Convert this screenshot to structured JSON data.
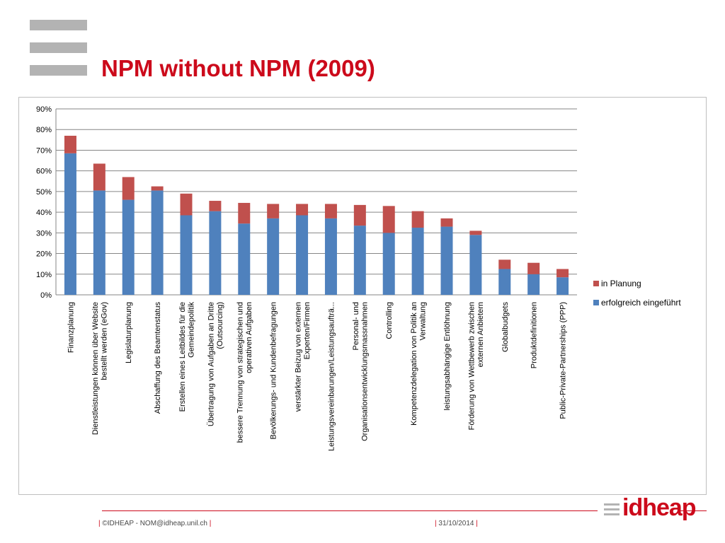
{
  "slide": {
    "title": "NPM without NPM (2009)"
  },
  "footer": {
    "copyright": "©IDHEAP - NOM@idheap.unil.ch",
    "date": "31/10/2014",
    "separator": "|",
    "brand": "idheap"
  },
  "colors": {
    "title": "#cc0a1b",
    "series_blue": "#4f81bd",
    "series_red": "#c0504d",
    "grid": "#7f7f7f",
    "logo_gray": "#b3b3b3"
  },
  "chart_data": {
    "type": "bar",
    "stacked": true,
    "title": "",
    "xlabel": "",
    "ylabel": "",
    "ylim": [
      0,
      90
    ],
    "y_unit": "%",
    "y_ticks": [
      "0%",
      "10%",
      "20%",
      "30%",
      "40%",
      "50%",
      "60%",
      "70%",
      "80%",
      "90%"
    ],
    "grid": true,
    "legend_position": "right",
    "categories": [
      [
        "Finanzplanung"
      ],
      [
        "Dienstleistungen können über Website",
        "bestellt werden (eGov)"
      ],
      [
        "Legislaturplanung"
      ],
      [
        "Abschaffung des Beamtenstatus"
      ],
      [
        "Erstellen eines Leitbildes für die",
        "Gemeindepolitik"
      ],
      [
        "Übertragung von Aufgaben an Dritte",
        "(Outsourcing)"
      ],
      [
        "bessere Trennung von strategischen und",
        "operativen Aufgaben"
      ],
      [
        "Bevölkerungs- und Kundenbefragungen"
      ],
      [
        "verstärkter Beizug von externen",
        "Experten/Firmen"
      ],
      [
        "Leistungsvereinbarungen/Leistungsaufträ..."
      ],
      [
        "Personal- und",
        "Organisationsentwicklungsmassnahmen"
      ],
      [
        "Controlling"
      ],
      [
        "Kompetenzdelegation von Politik an",
        "Verwaltung"
      ],
      [
        "leistungsabhängige Entlöhnung"
      ],
      [
        "Förderung von Wettbewerb zwischen",
        "externen Anbietern"
      ],
      [
        "Globalbudgets"
      ],
      [
        "Produktdefinitionen"
      ],
      [
        "Public-Private-Partnerships (PPP)"
      ]
    ],
    "series": [
      {
        "name": "erfolgreich eingeführt",
        "color": "#4f81bd",
        "values": [
          68.5,
          50.5,
          46,
          50.5,
          38.5,
          40.5,
          34.5,
          37,
          38.5,
          37,
          33.5,
          30,
          32.5,
          33,
          29,
          12.5,
          10,
          8.5
        ]
      },
      {
        "name": "in Planung",
        "color": "#c0504d",
        "values": [
          8.5,
          13,
          11,
          2,
          10.5,
          5,
          10,
          7,
          5.5,
          7,
          10,
          13,
          8,
          4,
          2,
          4.5,
          5.5,
          4
        ]
      }
    ]
  }
}
